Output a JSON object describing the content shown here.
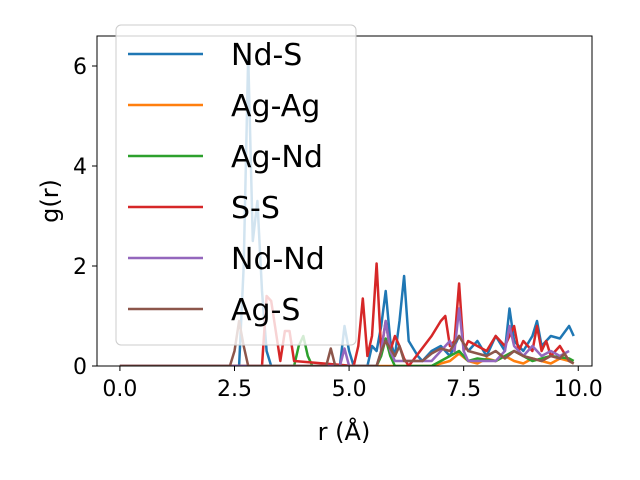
{
  "chart_data": {
    "type": "line",
    "xlabel": "r (Å)",
    "ylabel": "g(r)",
    "xlim": [
      -0.5,
      10.3
    ],
    "ylim": [
      0,
      6.6
    ],
    "xticks": [
      0.0,
      2.5,
      5.0,
      7.5,
      10.0
    ],
    "xtick_labels": [
      "0.0",
      "2.5",
      "5.0",
      "7.5",
      "10.0"
    ],
    "yticks": [
      0,
      2,
      4,
      6
    ],
    "ytick_labels": [
      "0",
      "2",
      "4",
      "6"
    ],
    "grid": false,
    "legend_position": "top-left",
    "series": [
      {
        "name": "Nd-S",
        "color": "#1f77b4",
        "x": [
          0,
          2.6,
          2.7,
          2.8,
          2.9,
          3.0,
          3.1,
          3.2,
          3.3,
          4.8,
          4.9,
          5.0,
          5.1,
          5.4,
          5.5,
          5.6,
          5.7,
          5.8,
          5.9,
          6.0,
          6.1,
          6.2,
          6.3,
          6.5,
          6.6,
          6.8,
          7.0,
          7.2,
          7.4,
          7.6,
          7.8,
          8.0,
          8.2,
          8.4,
          8.5,
          8.6,
          8.8,
          9.0,
          9.1,
          9.2,
          9.4,
          9.6,
          9.8,
          9.9
        ],
        "y": [
          0,
          0,
          2.0,
          6.2,
          2.5,
          3.3,
          1.5,
          0.3,
          0,
          0,
          0.8,
          0.3,
          0,
          0,
          0.4,
          0.3,
          0.8,
          1.5,
          0.5,
          0.2,
          0.9,
          1.8,
          0.5,
          0.2,
          0.1,
          0.3,
          0.4,
          0.2,
          0.6,
          0.3,
          0.5,
          0.2,
          0.6,
          0.3,
          1.15,
          0.5,
          0.3,
          0.6,
          0.9,
          0.4,
          0.6,
          0.55,
          0.8,
          0.6
        ]
      },
      {
        "name": "Ag-Ag",
        "color": "#ff7f0e",
        "x": [
          0,
          6.8,
          7.0,
          7.2,
          7.4,
          7.6,
          7.8,
          8.0,
          8.2,
          8.4,
          8.6,
          8.8,
          9.0,
          9.2,
          9.4,
          9.6,
          9.8,
          9.9
        ],
        "y": [
          0,
          0,
          0.05,
          0.1,
          0.25,
          0.1,
          0.05,
          0.15,
          0.1,
          0.2,
          0.1,
          0.05,
          0.15,
          0.1,
          0.05,
          0.15,
          0.1,
          0.05
        ]
      },
      {
        "name": "Ag-Nd",
        "color": "#2ca02c",
        "x": [
          0,
          3.8,
          3.9,
          4.0,
          4.1,
          4.2,
          5.6,
          5.7,
          5.8,
          5.9,
          6.0,
          6.8,
          7.0,
          7.2,
          7.4,
          7.6,
          7.8,
          8.2,
          8.4,
          8.6,
          9.0,
          9.4,
          9.8,
          9.9
        ],
        "y": [
          0,
          0,
          0.4,
          0.6,
          0.2,
          0,
          0,
          0.2,
          0.55,
          0.2,
          0,
          0,
          0.1,
          0.2,
          0.3,
          0.1,
          0.15,
          0.1,
          0.2,
          0.3,
          0.1,
          0.2,
          0.15,
          0.1
        ]
      },
      {
        "name": "S-S",
        "color": "#d62728",
        "x": [
          0,
          3.1,
          3.2,
          3.3,
          3.5,
          3.6,
          3.7,
          3.8,
          5.1,
          5.2,
          5.3,
          5.4,
          5.5,
          5.6,
          5.7,
          5.8,
          5.9,
          6.0,
          6.1,
          6.2,
          6.3,
          6.8,
          7.0,
          7.1,
          7.2,
          7.3,
          7.4,
          7.5,
          7.6,
          8.0,
          8.2,
          8.4,
          8.6,
          8.7,
          8.8,
          9.0,
          9.1,
          9.2,
          9.3,
          9.4,
          9.6,
          9.8
        ],
        "y": [
          0,
          0,
          1.4,
          1.3,
          0.1,
          0.7,
          0.7,
          0.1,
          0,
          0.4,
          1.35,
          0.2,
          0.6,
          2.05,
          0.3,
          0.9,
          0.3,
          0.6,
          0.4,
          0.15,
          0,
          0.6,
          0.9,
          1.0,
          0.4,
          0.5,
          1.65,
          0.3,
          0.5,
          0.3,
          0.6,
          0.4,
          0.8,
          0.3,
          0.5,
          0.3,
          0.8,
          0.3,
          0.5,
          0.2,
          0.4,
          0.1
        ]
      },
      {
        "name": "Nd-Nd",
        "color": "#9467bd",
        "x": [
          0,
          4.8,
          4.9,
          5.0,
          5.6,
          5.7,
          5.8,
          5.9,
          6.0,
          6.8,
          7.0,
          7.2,
          7.3,
          7.4,
          7.5,
          7.6,
          8.2,
          8.4,
          8.5,
          8.6,
          8.8,
          9.0,
          9.2,
          9.4,
          9.6,
          9.8
        ],
        "y": [
          0,
          0,
          0.35,
          0,
          0,
          0.3,
          0.9,
          0.3,
          0.1,
          0.1,
          0.3,
          0.5,
          0.3,
          1.15,
          0.3,
          0.1,
          0.1,
          0.3,
          0.8,
          0.4,
          0.2,
          0.4,
          0.2,
          0.3,
          0.2,
          0.3
        ]
      },
      {
        "name": "Ag-S",
        "color": "#8c564b",
        "x": [
          0,
          2.4,
          2.5,
          2.6,
          2.7,
          2.8,
          4.5,
          4.6,
          4.7,
          5.6,
          5.7,
          5.8,
          6.0,
          6.1,
          6.2,
          6.6,
          6.8,
          7.0,
          7.2,
          7.4,
          7.6,
          8.0,
          8.2,
          8.4,
          8.6,
          8.8,
          9.2,
          9.4,
          9.6,
          9.7,
          9.8,
          9.9
        ],
        "y": [
          0,
          0,
          0.3,
          0.9,
          0.4,
          0,
          0,
          0.35,
          0,
          0,
          0.3,
          0.5,
          0.2,
          0.4,
          0.1,
          0.1,
          0.25,
          0.35,
          0.3,
          0.6,
          0.3,
          0.2,
          0.3,
          0.15,
          0.3,
          0.2,
          0.1,
          0.2,
          0.15,
          0.25,
          0.1,
          0.05
        ]
      }
    ]
  }
}
